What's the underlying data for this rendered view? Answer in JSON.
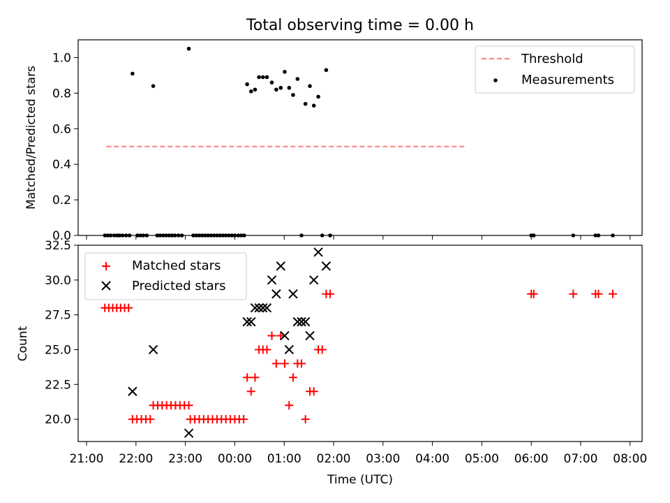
{
  "figure": {
    "title": "Total observing time = 0.00 h",
    "xlabel": "Time (UTC)",
    "x_tick_labels": [
      "21:00",
      "22:00",
      "23:00",
      "00:00",
      "01:00",
      "02:00",
      "03:00",
      "04:00",
      "05:00",
      "06:00",
      "07:00",
      "08:00"
    ]
  },
  "chart_data": [
    {
      "type": "scatter",
      "ylabel": "Matched/Predicted stars",
      "ylim": [
        0,
        1.1
      ],
      "y_ticks": [
        0.0,
        0.2,
        0.4,
        0.6,
        0.8,
        1.0
      ],
      "y_tick_labels": [
        "0.0",
        "0.2",
        "0.4",
        "0.6",
        "0.8",
        "1.0"
      ],
      "x_unit": "hours after 21:00 UTC",
      "legend": {
        "placement": "top-right",
        "entries": [
          "Threshold",
          "Measurements"
        ]
      },
      "series": [
        {
          "name": "Threshold",
          "style": "dashed-line",
          "color": "#ff7f7f",
          "points": [
            [
              0.4,
              0.5
            ],
            [
              7.65,
              0.5
            ]
          ]
        },
        {
          "name": "Measurements",
          "style": "dot",
          "color": "#000000",
          "points": [
            [
              0.37,
              0
            ],
            [
              0.43,
              0
            ],
            [
              0.49,
              0
            ],
            [
              0.56,
              0
            ],
            [
              0.62,
              0
            ],
            [
              0.67,
              0
            ],
            [
              0.73,
              0
            ],
            [
              0.8,
              0
            ],
            [
              0.87,
              0
            ],
            [
              0.93,
              0.91
            ],
            [
              1.03,
              0
            ],
            [
              1.09,
              0
            ],
            [
              1.15,
              0
            ],
            [
              1.22,
              0
            ],
            [
              1.35,
              0.84
            ],
            [
              1.43,
              0
            ],
            [
              1.49,
              0
            ],
            [
              1.55,
              0
            ],
            [
              1.61,
              0
            ],
            [
              1.67,
              0
            ],
            [
              1.73,
              0
            ],
            [
              1.79,
              0
            ],
            [
              1.86,
              0
            ],
            [
              1.93,
              0
            ],
            [
              2.07,
              1.05
            ],
            [
              2.16,
              0
            ],
            [
              2.22,
              0
            ],
            [
              2.28,
              0
            ],
            [
              2.34,
              0
            ],
            [
              2.4,
              0
            ],
            [
              2.46,
              0
            ],
            [
              2.52,
              0
            ],
            [
              2.58,
              0
            ],
            [
              2.64,
              0
            ],
            [
              2.7,
              0
            ],
            [
              2.76,
              0
            ],
            [
              2.82,
              0
            ],
            [
              2.88,
              0
            ],
            [
              2.94,
              0
            ],
            [
              3.0,
              0
            ],
            [
              3.07,
              0
            ],
            [
              3.13,
              0
            ],
            [
              3.19,
              0
            ],
            [
              3.25,
              0.85
            ],
            [
              3.33,
              0.81
            ],
            [
              3.41,
              0.82
            ],
            [
              3.49,
              0.89
            ],
            [
              3.57,
              0.89
            ],
            [
              3.65,
              0.89
            ],
            [
              3.75,
              0.86
            ],
            [
              3.84,
              0.82
            ],
            [
              3.93,
              0.83
            ],
            [
              4.01,
              0.92
            ],
            [
              4.1,
              0.83
            ],
            [
              4.18,
              0.79
            ],
            [
              4.27,
              0.88
            ],
            [
              4.35,
              0
            ],
            [
              4.43,
              0.74
            ],
            [
              4.52,
              0.84
            ],
            [
              4.6,
              0.73
            ],
            [
              4.69,
              0.78
            ],
            [
              4.77,
              0
            ],
            [
              4.85,
              0.93
            ],
            [
              4.93,
              0
            ],
            [
              9.0,
              0
            ],
            [
              9.05,
              0
            ],
            [
              9.85,
              0
            ],
            [
              10.3,
              0
            ],
            [
              10.36,
              0
            ],
            [
              10.65,
              0
            ]
          ]
        }
      ]
    },
    {
      "type": "scatter",
      "ylabel": "Count",
      "ylim": [
        18.4,
        32.5
      ],
      "y_ticks": [
        20.0,
        22.5,
        25.0,
        27.5,
        30.0,
        32.5
      ],
      "y_tick_labels": [
        "20.0",
        "22.5",
        "25.0",
        "27.5",
        "30.0",
        "32.5"
      ],
      "x_unit": "hours after 21:00 UTC",
      "legend": {
        "placement": "top-left",
        "entries": [
          "Matched stars",
          "Predicted stars"
        ]
      },
      "series": [
        {
          "name": "Matched stars",
          "style": "plus",
          "color": "#ff0000",
          "points": [
            [
              0.37,
              28
            ],
            [
              0.45,
              28
            ],
            [
              0.53,
              28
            ],
            [
              0.61,
              28
            ],
            [
              0.69,
              28
            ],
            [
              0.77,
              28
            ],
            [
              0.85,
              28
            ],
            [
              0.93,
              20
            ],
            [
              1.02,
              20
            ],
            [
              1.11,
              20
            ],
            [
              1.2,
              20
            ],
            [
              1.29,
              20
            ],
            [
              1.35,
              21
            ],
            [
              1.44,
              21
            ],
            [
              1.53,
              21
            ],
            [
              1.62,
              21
            ],
            [
              1.71,
              21
            ],
            [
              1.8,
              21
            ],
            [
              1.89,
              21
            ],
            [
              1.98,
              21
            ],
            [
              2.07,
              21
            ],
            [
              2.1,
              20
            ],
            [
              2.19,
              20
            ],
            [
              2.28,
              20
            ],
            [
              2.37,
              20
            ],
            [
              2.46,
              20
            ],
            [
              2.55,
              20
            ],
            [
              2.64,
              20
            ],
            [
              2.73,
              20
            ],
            [
              2.82,
              20
            ],
            [
              2.91,
              20
            ],
            [
              3.0,
              20
            ],
            [
              3.09,
              20
            ],
            [
              3.18,
              20
            ],
            [
              3.25,
              23
            ],
            [
              3.33,
              22
            ],
            [
              3.41,
              23
            ],
            [
              3.49,
              25
            ],
            [
              3.57,
              25
            ],
            [
              3.65,
              25
            ],
            [
              3.75,
              26
            ],
            [
              3.84,
              24
            ],
            [
              3.93,
              26
            ],
            [
              4.01,
              24
            ],
            [
              4.1,
              21
            ],
            [
              4.18,
              23
            ],
            [
              4.27,
              24
            ],
            [
              4.35,
              24
            ],
            [
              4.43,
              20
            ],
            [
              4.52,
              22
            ],
            [
              4.6,
              22
            ],
            [
              4.69,
              25
            ],
            [
              4.77,
              25
            ],
            [
              4.85,
              29
            ],
            [
              4.93,
              29
            ],
            [
              9.0,
              29
            ],
            [
              9.05,
              29
            ],
            [
              9.85,
              29
            ],
            [
              10.3,
              29
            ],
            [
              10.36,
              29
            ],
            [
              10.65,
              29
            ]
          ]
        },
        {
          "name": "Predicted stars",
          "style": "x",
          "color": "#000000",
          "points": [
            [
              0.93,
              22
            ],
            [
              1.35,
              25
            ],
            [
              2.07,
              19
            ],
            [
              3.25,
              27
            ],
            [
              3.33,
              27
            ],
            [
              3.41,
              28
            ],
            [
              3.49,
              28
            ],
            [
              3.57,
              28
            ],
            [
              3.65,
              28
            ],
            [
              3.75,
              30
            ],
            [
              3.84,
              29
            ],
            [
              3.93,
              31
            ],
            [
              4.01,
              26
            ],
            [
              4.1,
              25
            ],
            [
              4.18,
              29
            ],
            [
              4.27,
              27
            ],
            [
              4.35,
              27
            ],
            [
              4.43,
              27
            ],
            [
              4.52,
              26
            ],
            [
              4.6,
              30
            ],
            [
              4.69,
              32
            ],
            [
              4.85,
              31
            ]
          ]
        }
      ]
    }
  ]
}
